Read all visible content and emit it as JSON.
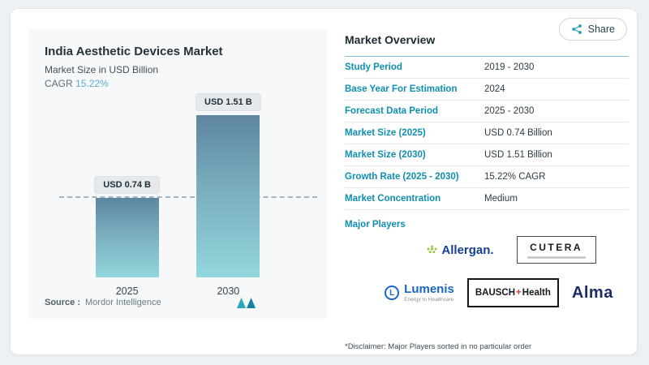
{
  "colors": {
    "accent": "#0f8fb0",
    "bar_gradient_top": "#5e85a0",
    "bar_gradient_bottom": "#93d6dd",
    "dashed_line": "#a3b5be"
  },
  "share": {
    "label": "Share"
  },
  "chart": {
    "title": "India Aesthetic Devices Market",
    "subtitle": "Market Size in USD Billion",
    "cagr_label": "CAGR",
    "cagr_value": "15.22%",
    "source_label": "Source :",
    "source_value": "Mordor Intelligence"
  },
  "chart_data": {
    "type": "bar",
    "categories": [
      "2025",
      "2030"
    ],
    "values": [
      0.74,
      1.51
    ],
    "bar_labels": [
      "USD 0.74 B",
      "USD 1.51 B"
    ],
    "title": "India Aesthetic Devices Market",
    "xlabel": "",
    "ylabel": "Market Size in USD Billion",
    "ylim": [
      0,
      1.6
    ],
    "grid": false,
    "legend": "none",
    "reference_line": 0.74
  },
  "overview": {
    "title": "Market Overview",
    "rows": [
      {
        "label": "Study Period",
        "value": "2019 - 2030"
      },
      {
        "label": "Base Year For Estimation",
        "value": "2024"
      },
      {
        "label": "Forecast Data Period",
        "value": "2025 - 2030"
      },
      {
        "label": "Market Size (2025)",
        "value": "USD 0.74 Billion"
      },
      {
        "label": "Market Size (2030)",
        "value": "USD 1.51 Billion"
      },
      {
        "label": "Growth Rate (2025 - 2030)",
        "value": "15.22% CAGR"
      },
      {
        "label": "Market Concentration",
        "value": "Medium"
      }
    ],
    "major_players_label": "Major Players",
    "players": {
      "allergan": "Allergan.",
      "cutera": "CUTERA",
      "lumenis": "Lumenis",
      "lumenis_tagline": "Energy to Healthcare",
      "bausch_word": "BAUSCH",
      "bausch_plus": "+",
      "bausch_word2": "Health",
      "alma": "Alma"
    },
    "disclaimer": "*Disclaimer: Major Players sorted in no particular order"
  }
}
